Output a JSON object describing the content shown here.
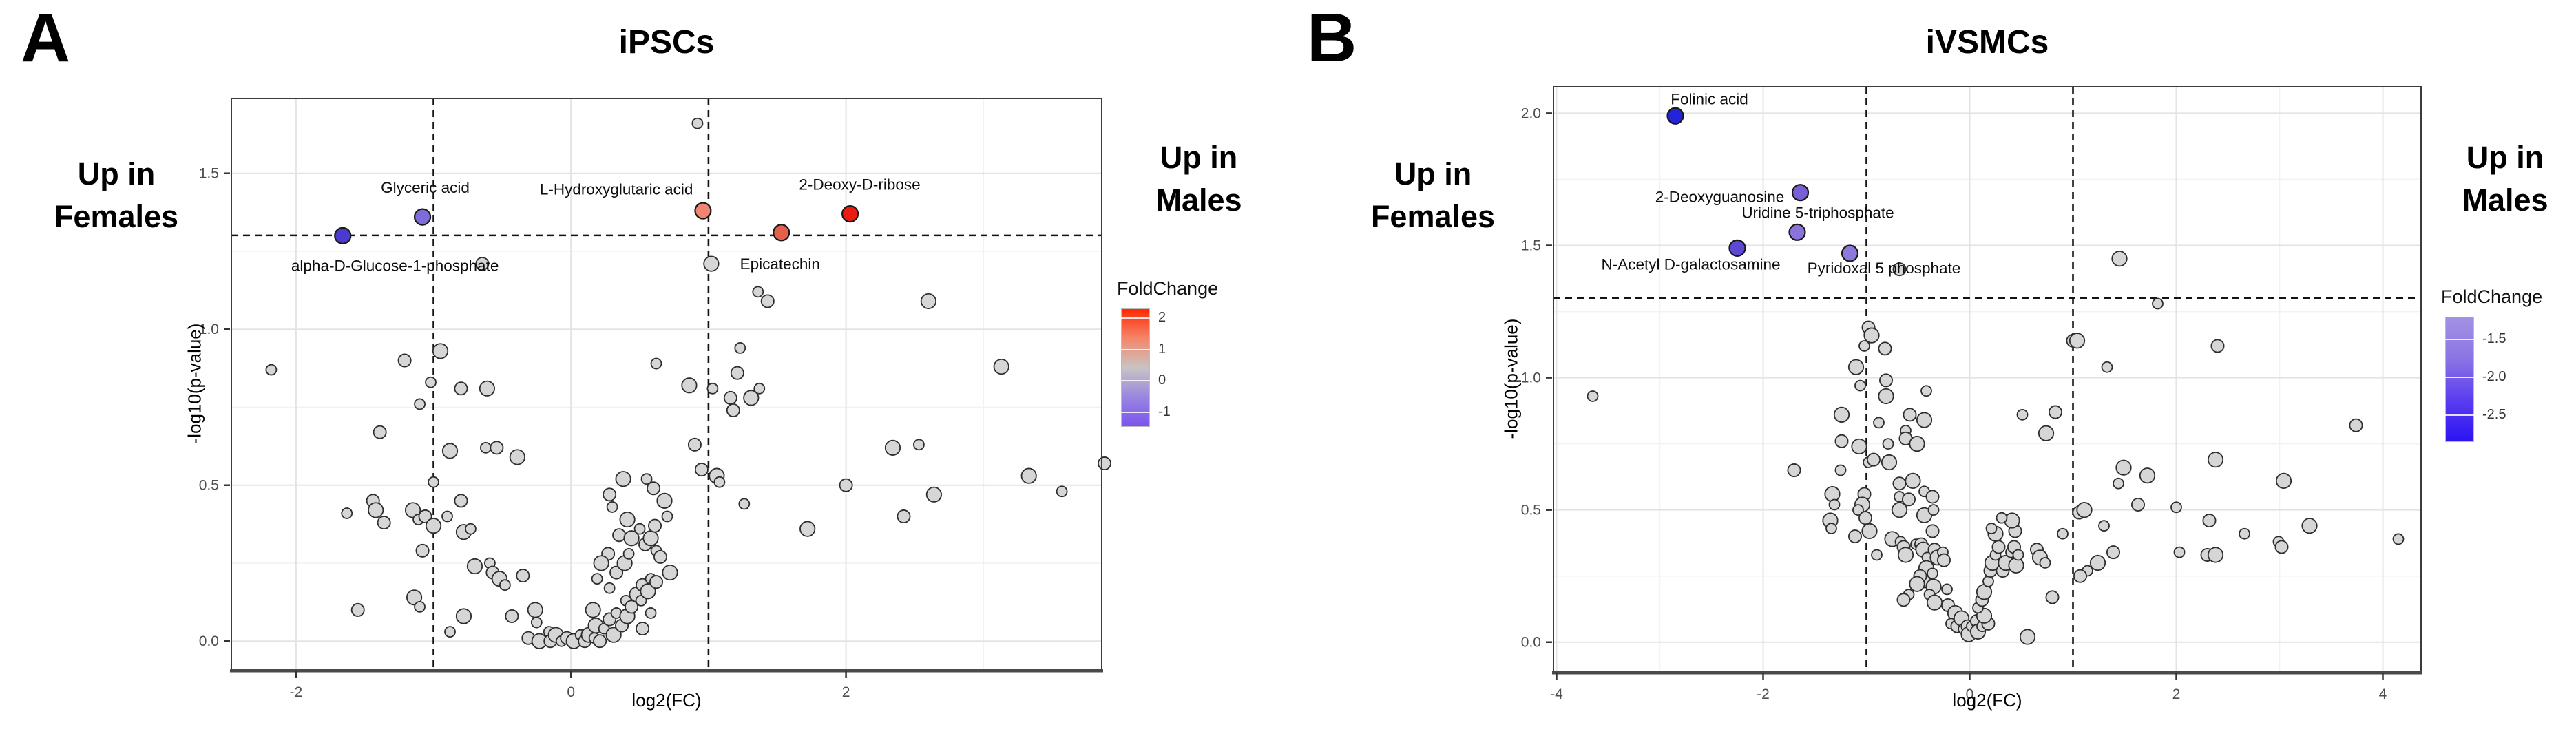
{
  "figure_label_a": "A",
  "figure_label_b": "B",
  "chart_data": [
    {
      "type": "scatter",
      "panel_tag": "A",
      "title": "iPSCs",
      "left_annotation": [
        "Up in",
        "Females"
      ],
      "right_annotation": [
        "Up in",
        "Males"
      ],
      "xlabel": "log2(FC)",
      "ylabel": "-log10(p-value)",
      "xlim": [
        -2.47,
        3.86
      ],
      "ylim": [
        -0.09,
        1.74
      ],
      "grid": "on",
      "x_major_ticks": [
        -2,
        0,
        2
      ],
      "x_minor_ticks": [
        -1,
        1,
        3
      ],
      "y_major_ticks": [
        0.0,
        0.5,
        1.0,
        1.5
      ],
      "y_minor_ticks": [
        0.25,
        0.75,
        1.25
      ],
      "x_tick_labels": [
        "-2",
        "0",
        "2"
      ],
      "y_tick_labels": [
        "0.0",
        "0.5",
        "1.0",
        "1.5"
      ],
      "threshold_hline_y": 1.301,
      "threshold_vlines_x": [
        -1,
        1
      ],
      "legend": {
        "title": "FoldChange",
        "position": "right",
        "tick_labels": [
          "2",
          "1",
          "0",
          "-1"
        ],
        "tick_values": [
          2,
          1,
          0,
          -1
        ],
        "bar_range": [
          2.3,
          -1.45
        ],
        "gradient": [
          "#ff2a04",
          "#f4866a",
          "#c9c3c3",
          "#9a86e0",
          "#7a55ef"
        ]
      },
      "highlighted_points": [
        {
          "label": "alpha-D-Glucose-1-phosphate",
          "x": -1.66,
          "y": 1.3,
          "fold_change": -1.0,
          "color": "#4a3ad0",
          "label_x": -1.28,
          "label_y": 1.205
        },
        {
          "label": "Glyceric acid",
          "x": -1.08,
          "y": 1.36,
          "fold_change": -0.8,
          "color": "#7e6cda",
          "label_x": -1.06,
          "label_y": 1.455
        },
        {
          "label": "L-Hydroxyglutaric acid",
          "x": 0.96,
          "y": 1.38,
          "fold_change": 1.0,
          "color": "#ef8672",
          "label_x": 0.33,
          "label_y": 1.45
        },
        {
          "label": "Epicatechin",
          "x": 1.53,
          "y": 1.31,
          "fold_change": 1.5,
          "color": "#e2604c",
          "label_x": 1.52,
          "label_y": 1.21
        },
        {
          "label": "2-Deoxy-D-ribose",
          "x": 2.03,
          "y": 1.37,
          "fold_change": 2.0,
          "color": "#ea1b10",
          "label_x": 2.1,
          "label_y": 1.465
        }
      ],
      "background_points": [
        [
          0.92,
          1.66
        ],
        [
          -0.645,
          1.21
        ],
        [
          1.02,
          1.21
        ],
        [
          1.36,
          1.12
        ],
        [
          1.43,
          1.09
        ],
        [
          2.6,
          1.09
        ],
        [
          1.23,
          0.94
        ],
        [
          1.21,
          0.86
        ],
        [
          0.86,
          0.82
        ],
        [
          1.03,
          0.81
        ],
        [
          1.16,
          0.78
        ],
        [
          1.31,
          0.78
        ],
        [
          1.37,
          0.81
        ],
        [
          1.18,
          0.74
        ],
        [
          3.13,
          0.88
        ],
        [
          0.62,
          0.89
        ],
        [
          0.9,
          0.63
        ],
        [
          2.34,
          0.62
        ],
        [
          2.53,
          0.63
        ],
        [
          0.95,
          0.55
        ],
        [
          1.06,
          0.53
        ],
        [
          1.08,
          0.51
        ],
        [
          2.0,
          0.5
        ],
        [
          3.33,
          0.53
        ],
        [
          3.57,
          0.48
        ],
        [
          3.88,
          0.57
        ],
        [
          2.64,
          0.47
        ],
        [
          1.26,
          0.44
        ],
        [
          2.42,
          0.4
        ],
        [
          1.72,
          0.36
        ],
        [
          -2.18,
          0.87
        ],
        [
          -1.21,
          0.9
        ],
        [
          -0.95,
          0.93
        ],
        [
          -1.02,
          0.83
        ],
        [
          -0.8,
          0.81
        ],
        [
          -0.61,
          0.81
        ],
        [
          -1.1,
          0.76
        ],
        [
          -1.39,
          0.67
        ],
        [
          -0.88,
          0.61
        ],
        [
          -0.62,
          0.62
        ],
        [
          -0.54,
          0.62
        ],
        [
          -0.39,
          0.59
        ],
        [
          -1.0,
          0.51
        ],
        [
          -1.44,
          0.45
        ],
        [
          -1.42,
          0.42
        ],
        [
          -1.63,
          0.41
        ],
        [
          -1.36,
          0.38
        ],
        [
          -1.15,
          0.42
        ],
        [
          -1.11,
          0.39
        ],
        [
          -1.06,
          0.4
        ],
        [
          -1.0,
          0.37
        ],
        [
          -0.9,
          0.4
        ],
        [
          -0.8,
          0.45
        ],
        [
          -0.78,
          0.35
        ],
        [
          -0.73,
          0.36
        ],
        [
          -1.08,
          0.29
        ],
        [
          -0.7,
          0.24
        ],
        [
          -0.59,
          0.25
        ],
        [
          -0.57,
          0.22
        ],
        [
          -0.52,
          0.2
        ],
        [
          -0.48,
          0.18
        ],
        [
          -0.35,
          0.21
        ],
        [
          -1.14,
          0.14
        ],
        [
          -1.1,
          0.11
        ],
        [
          -1.55,
          0.1
        ],
        [
          -0.78,
          0.08
        ],
        [
          -0.88,
          0.03
        ],
        [
          -0.43,
          0.08
        ],
        [
          -0.26,
          0.1
        ],
        [
          -0.25,
          0.06
        ],
        [
          -0.31,
          0.01
        ],
        [
          -0.23,
          0.0
        ],
        [
          -0.16,
          0.03
        ],
        [
          -0.15,
          0.0
        ],
        [
          -0.11,
          0.02
        ],
        [
          -0.07,
          0.0
        ],
        [
          -0.03,
          0.01
        ],
        [
          0.02,
          0.0
        ],
        [
          0.07,
          0.02
        ],
        [
          0.1,
          0.0
        ],
        [
          0.13,
          0.02
        ],
        [
          0.17,
          0.01
        ],
        [
          0.21,
          0.0
        ],
        [
          0.18,
          0.05
        ],
        [
          0.24,
          0.04
        ],
        [
          0.28,
          0.07
        ],
        [
          0.31,
          0.02
        ],
        [
          0.33,
          0.09
        ],
        [
          0.37,
          0.05
        ],
        [
          0.41,
          0.08
        ],
        [
          0.4,
          0.13
        ],
        [
          0.44,
          0.11
        ],
        [
          0.48,
          0.15
        ],
        [
          0.51,
          0.13
        ],
        [
          0.52,
          0.18
        ],
        [
          0.56,
          0.16
        ],
        [
          0.58,
          0.2
        ],
        [
          0.62,
          0.19
        ],
        [
          0.16,
          0.1
        ],
        [
          0.28,
          0.17
        ],
        [
          0.33,
          0.22
        ],
        [
          0.39,
          0.25
        ],
        [
          0.42,
          0.28
        ],
        [
          0.27,
          0.28
        ],
        [
          0.22,
          0.25
        ],
        [
          0.19,
          0.2
        ],
        [
          0.35,
          0.34
        ],
        [
          0.44,
          0.33
        ],
        [
          0.5,
          0.36
        ],
        [
          0.54,
          0.31
        ],
        [
          0.58,
          0.33
        ],
        [
          0.62,
          0.29
        ],
        [
          0.61,
          0.37
        ],
        [
          0.41,
          0.39
        ],
        [
          0.3,
          0.43
        ],
        [
          0.28,
          0.47
        ],
        [
          0.38,
          0.52
        ],
        [
          0.55,
          0.52
        ],
        [
          0.6,
          0.49
        ],
        [
          0.68,
          0.45
        ],
        [
          0.7,
          0.4
        ],
        [
          0.65,
          0.27
        ],
        [
          0.72,
          0.22
        ],
        [
          0.58,
          0.09
        ],
        [
          0.52,
          0.04
        ]
      ]
    },
    {
      "type": "scatter",
      "panel_tag": "B",
      "title": "iVSMCs",
      "left_annotation": [
        "Up in",
        "Females"
      ],
      "right_annotation": [
        "Up in",
        "Males"
      ],
      "xlabel": "log2(FC)",
      "ylabel": "-log10(p-value)",
      "xlim": [
        -4.03,
        4.37
      ],
      "ylim": [
        -0.11,
        2.1
      ],
      "grid": "on",
      "x_major_ticks": [
        -4,
        -2,
        0,
        2,
        4
      ],
      "x_minor_ticks": [
        -3,
        -1,
        1,
        3
      ],
      "y_major_ticks": [
        0.0,
        0.5,
        1.0,
        1.5,
        2.0
      ],
      "y_minor_ticks": [
        0.25,
        0.75,
        1.25,
        1.75
      ],
      "x_tick_labels": [
        "-4",
        "-2",
        "0",
        "2",
        "4"
      ],
      "y_tick_labels": [
        "0.0",
        "0.5",
        "1.0",
        "1.5",
        "2.0"
      ],
      "threshold_hline_y": 1.301,
      "threshold_vlines_x": [
        -1,
        1
      ],
      "legend": {
        "title": "FoldChange",
        "position": "right",
        "tick_labels": [
          "-1.5",
          "-2.0",
          "-2.5"
        ],
        "tick_values": [
          -1.5,
          -2.0,
          -2.5
        ],
        "bar_range": [
          -1.2,
          -2.85
        ],
        "gradient": [
          "#a392e4",
          "#8b74e4",
          "#5b3df0",
          "#2b14f2"
        ]
      },
      "highlighted_points": [
        {
          "label": "Folinic acid",
          "x": -2.85,
          "y": 1.99,
          "fold_change": -2.8,
          "color": "#2323dc",
          "label_x": -2.52,
          "label_y": 2.055
        },
        {
          "label": "2-Deoxyguanosine",
          "x": -1.64,
          "y": 1.7,
          "fold_change": -1.6,
          "color": "#7a5fd6",
          "label_x": -2.42,
          "label_y": 1.685
        },
        {
          "label": "Uridine 5-triphosphate",
          "x": -1.67,
          "y": 1.55,
          "fold_change": -1.4,
          "color": "#8a74dc",
          "label_x": -1.47,
          "label_y": 1.625
        },
        {
          "label": "N-Acetyl D-galactosamine",
          "x": -2.25,
          "y": 1.49,
          "fold_change": -2.0,
          "color": "#5b49d4",
          "label_x": -2.7,
          "label_y": 1.43
        },
        {
          "label": "Pyridoxal 5 phosphate",
          "x": -1.16,
          "y": 1.47,
          "fold_change": -1.3,
          "color": "#8d78dd",
          "label_x": -0.83,
          "label_y": 1.415
        }
      ],
      "background_points": [
        [
          -3.65,
          0.93
        ],
        [
          -0.68,
          1.41
        ],
        [
          1.45,
          1.45
        ],
        [
          1.82,
          1.28
        ],
        [
          -0.98,
          1.19
        ],
        [
          -0.95,
          1.16
        ],
        [
          -1.02,
          1.12
        ],
        [
          -0.82,
          1.11
        ],
        [
          -1.1,
          1.04
        ],
        [
          -1.06,
          0.97
        ],
        [
          -0.81,
          0.99
        ],
        [
          -0.81,
          0.93
        ],
        [
          -0.42,
          0.95
        ],
        [
          1.0,
          1.14
        ],
        [
          1.04,
          1.14
        ],
        [
          1.33,
          1.04
        ],
        [
          2.4,
          1.12
        ],
        [
          -1.24,
          0.86
        ],
        [
          -0.88,
          0.83
        ],
        [
          -0.58,
          0.86
        ],
        [
          -0.44,
          0.84
        ],
        [
          -0.62,
          0.8
        ],
        [
          -1.24,
          0.76
        ],
        [
          -1.07,
          0.74
        ],
        [
          -0.79,
          0.75
        ],
        [
          -0.62,
          0.77
        ],
        [
          -0.51,
          0.75
        ],
        [
          0.51,
          0.86
        ],
        [
          0.83,
          0.87
        ],
        [
          0.74,
          0.79
        ],
        [
          -0.98,
          0.68
        ],
        [
          -0.93,
          0.69
        ],
        [
          -0.78,
          0.68
        ],
        [
          -1.25,
          0.65
        ],
        [
          -1.7,
          0.65
        ],
        [
          -1.33,
          0.56
        ],
        [
          -1.31,
          0.52
        ],
        [
          -1.02,
          0.56
        ],
        [
          -1.04,
          0.52
        ],
        [
          -1.08,
          0.5
        ],
        [
          -1.01,
          0.47
        ],
        [
          -1.35,
          0.46
        ],
        [
          -1.34,
          0.43
        ],
        [
          -1.11,
          0.4
        ],
        [
          -0.97,
          0.42
        ],
        [
          -0.9,
          0.33
        ],
        [
          -0.68,
          0.6
        ],
        [
          -0.55,
          0.61
        ],
        [
          -0.68,
          0.55
        ],
        [
          -0.59,
          0.54
        ],
        [
          -0.68,
          0.5
        ],
        [
          -0.44,
          0.57
        ],
        [
          -0.36,
          0.55
        ],
        [
          -0.44,
          0.48
        ],
        [
          -0.35,
          0.5
        ],
        [
          -0.36,
          0.42
        ],
        [
          -0.75,
          0.39
        ],
        [
          -0.67,
          0.38
        ],
        [
          -0.64,
          0.36
        ],
        [
          -0.62,
          0.33
        ],
        [
          -0.52,
          0.37
        ],
        [
          -0.47,
          0.37
        ],
        [
          -0.45,
          0.35
        ],
        [
          -0.41,
          0.32
        ],
        [
          -0.34,
          0.35
        ],
        [
          -0.31,
          0.32
        ],
        [
          -0.26,
          0.34
        ],
        [
          -0.25,
          0.31
        ],
        [
          -0.42,
          0.28
        ],
        [
          -0.36,
          0.26
        ],
        [
          -0.44,
          0.23
        ],
        [
          -0.35,
          0.21
        ],
        [
          -0.39,
          0.18
        ],
        [
          -0.48,
          0.25
        ],
        [
          -0.51,
          0.22
        ],
        [
          -0.59,
          0.18
        ],
        [
          -0.64,
          0.16
        ],
        [
          -0.34,
          0.15
        ],
        [
          -0.22,
          0.2
        ],
        [
          -0.21,
          0.14
        ],
        [
          -0.14,
          0.11
        ],
        [
          -0.18,
          0.07
        ],
        [
          -0.12,
          0.06
        ],
        [
          -0.08,
          0.09
        ],
        [
          -0.06,
          0.05
        ],
        [
          -0.02,
          0.06
        ],
        [
          -0.01,
          0.03
        ],
        [
          0.02,
          0.06
        ],
        [
          0.07,
          0.08
        ],
        [
          0.08,
          0.04
        ],
        [
          0.12,
          0.06
        ],
        [
          0.18,
          0.07
        ],
        [
          0.14,
          0.1
        ],
        [
          0.08,
          0.13
        ],
        [
          0.12,
          0.16
        ],
        [
          0.14,
          0.19
        ],
        [
          0.18,
          0.23
        ],
        [
          0.2,
          0.27
        ],
        [
          0.22,
          0.3
        ],
        [
          0.25,
          0.33
        ],
        [
          0.28,
          0.36
        ],
        [
          0.25,
          0.41
        ],
        [
          0.21,
          0.43
        ],
        [
          0.32,
          0.27
        ],
        [
          0.35,
          0.3
        ],
        [
          0.4,
          0.34
        ],
        [
          0.43,
          0.36
        ],
        [
          0.45,
          0.29
        ],
        [
          0.47,
          0.33
        ],
        [
          0.44,
          0.42
        ],
        [
          0.41,
          0.46
        ],
        [
          0.31,
          0.47
        ],
        [
          0.65,
          0.35
        ],
        [
          0.68,
          0.32
        ],
        [
          0.73,
          0.3
        ],
        [
          0.8,
          0.17
        ],
        [
          0.56,
          0.02
        ],
        [
          0.9,
          0.41
        ],
        [
          1.06,
          0.49
        ],
        [
          1.11,
          0.5
        ],
        [
          1.3,
          0.44
        ],
        [
          1.39,
          0.34
        ],
        [
          1.24,
          0.3
        ],
        [
          1.14,
          0.27
        ],
        [
          1.07,
          0.25
        ],
        [
          1.49,
          0.66
        ],
        [
          1.44,
          0.6
        ],
        [
          1.63,
          0.52
        ],
        [
          1.72,
          0.63
        ],
        [
          2.0,
          0.51
        ],
        [
          2.32,
          0.46
        ],
        [
          2.38,
          0.69
        ],
        [
          2.03,
          0.34
        ],
        [
          2.3,
          0.33
        ],
        [
          2.38,
          0.33
        ],
        [
          2.66,
          0.41
        ],
        [
          3.74,
          0.82
        ],
        [
          3.04,
          0.61
        ],
        [
          2.99,
          0.38
        ],
        [
          3.02,
          0.36
        ],
        [
          3.29,
          0.44
        ],
        [
          4.15,
          0.39
        ]
      ]
    }
  ]
}
